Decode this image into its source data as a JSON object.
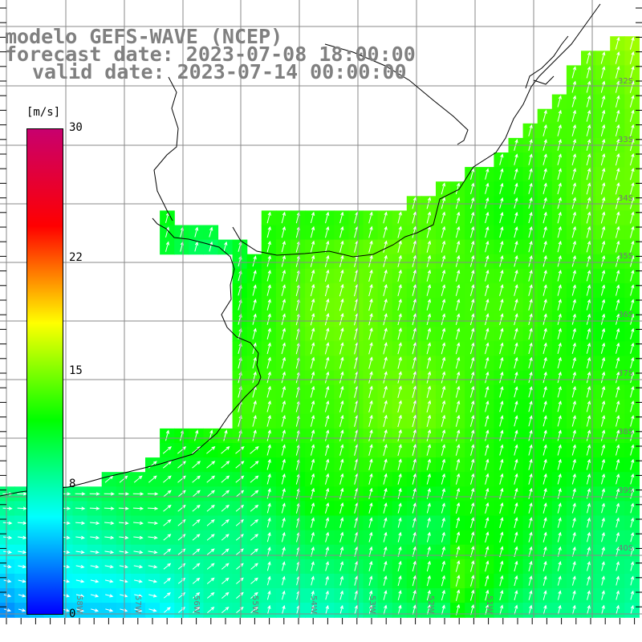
{
  "title": {
    "line1": "modelo GEFS-WAVE (NCEP)",
    "line2": "forecast date: 2023-07-08 18:00:00",
    "line3": "valid date: 2023-07-14 00:00:00"
  },
  "colorbar": {
    "unit": "[m/s]",
    "min": 0,
    "max": 30,
    "ticks": [
      "30",
      "22",
      "15",
      "8",
      "0"
    ],
    "tick_values": [
      30,
      22,
      15,
      8,
      0
    ],
    "colors": [
      "#0000ff",
      "#00ffff",
      "#00ff00",
      "#ffff00",
      "#ff0000",
      "#c8006e"
    ]
  },
  "grid": {
    "lat_labels": [
      "32S",
      "33S",
      "34S",
      "35S",
      "36S",
      "37S",
      "38S",
      "39S",
      "40S"
    ],
    "lon_labels": [
      "58W",
      "57W",
      "56W",
      "55W",
      "54W",
      "53W",
      "52W",
      "51W"
    ]
  },
  "colors": {
    "land": "#ffffff",
    "coast": "#000000",
    "grid": "#888888",
    "arrows": "#ffffff",
    "title": "#808080"
  }
}
